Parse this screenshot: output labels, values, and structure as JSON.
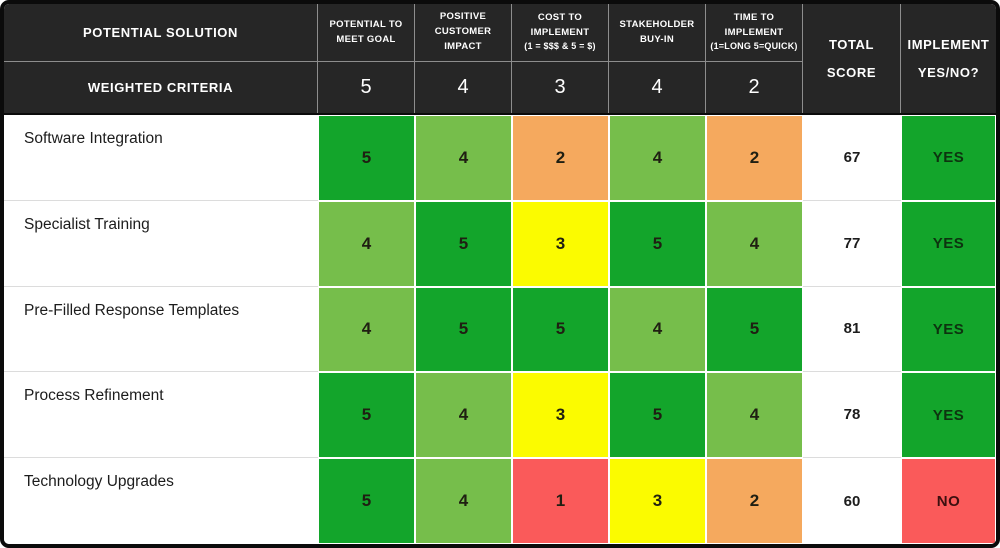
{
  "chart_data": {
    "type": "table",
    "table_kind": "weighted-decision-matrix",
    "header": {
      "solution_label": "POTENTIAL SOLUTION",
      "weighted_label": "WEIGHTED CRITERIA",
      "criteria": [
        {
          "title": "POTENTIAL TO MEET GOAL",
          "note": "",
          "weight": "5"
        },
        {
          "title": "POSITIVE CUSTOMER IMPACT",
          "note": "",
          "weight": "4"
        },
        {
          "title": "COST TO IMPLEMENT",
          "note": "(1 = $$$ & 5 = $)",
          "weight": "3"
        },
        {
          "title": "STAKEHOLDER BUY-IN",
          "note": "",
          "weight": "4"
        },
        {
          "title": "TIME TO IMPLEMENT",
          "note": "(1=LONG 5=QUICK)",
          "weight": "2"
        }
      ],
      "total_label": "TOTAL SCORE",
      "implement_line1": "IMPLEMENT",
      "implement_line2": "YES/NO?"
    },
    "rows": [
      {
        "solution": "Software Integration",
        "scores": [
          5,
          4,
          2,
          4,
          2
        ],
        "total": "67",
        "implement": "YES"
      },
      {
        "solution": "Specialist Training",
        "scores": [
          4,
          5,
          3,
          5,
          4
        ],
        "total": "77",
        "implement": "YES"
      },
      {
        "solution": "Pre-Filled Response Templates",
        "scores": [
          4,
          5,
          5,
          4,
          5
        ],
        "total": "81",
        "implement": "YES"
      },
      {
        "solution": "Process Refinement",
        "scores": [
          5,
          4,
          3,
          5,
          4
        ],
        "total": "78",
        "implement": "YES"
      },
      {
        "solution": "Technology Upgrades",
        "scores": [
          5,
          4,
          1,
          3,
          2
        ],
        "total": "60",
        "implement": "NO"
      }
    ],
    "palette": {
      "header_bg": "#262626",
      "header_text": "#ffffff",
      "header_divider": "#8d8d8d",
      "row_divider": "#dcdcdc",
      "frame_border": "#0b0b0b",
      "scores": {
        "5": "#13a52b",
        "4": "#76be4b",
        "3": "#fbfb00",
        "2": "#f5a95e",
        "1": "#fa5a5a"
      },
      "implement_bg": {
        "YES": "#13a52b",
        "NO": "#fa5a5a"
      },
      "implement_text": {
        "YES": "#0d330f",
        "NO": "#3c0f0f"
      }
    }
  }
}
